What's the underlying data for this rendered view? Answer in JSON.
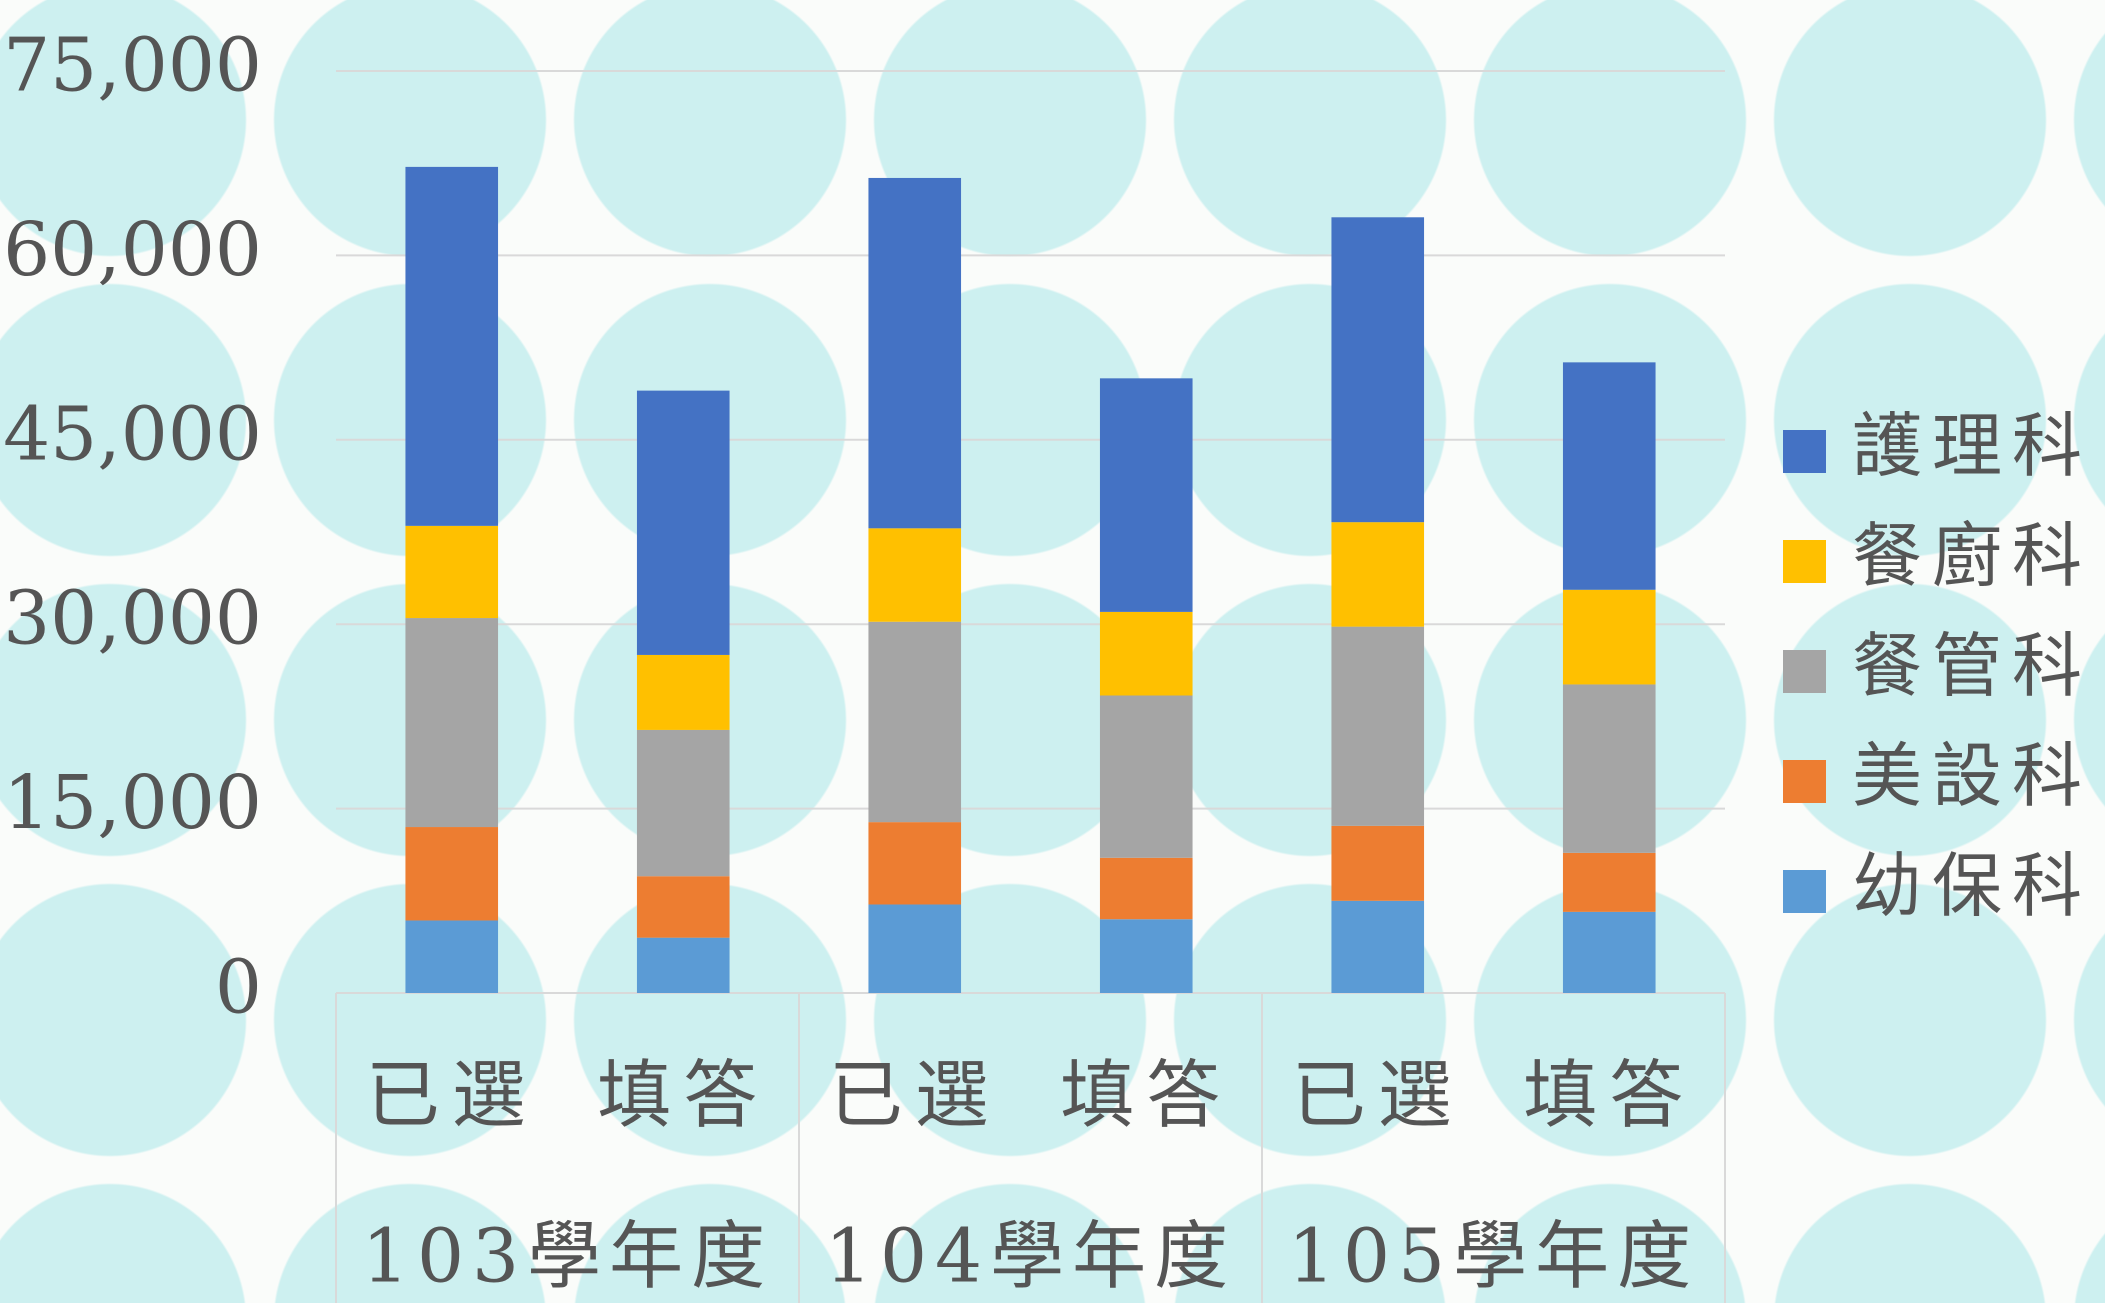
{
  "chart_data": {
    "type": "stacked_bar",
    "categories": [
      "已選",
      "填答",
      "已選",
      "填答",
      "已選",
      "填答"
    ],
    "groups": [
      "103學年度",
      "104學年度",
      "105學年度"
    ],
    "series": [
      {
        "name": "幼保科",
        "color": "#5b9bd5",
        "values": [
          5900,
          4500,
          7200,
          6000,
          7500,
          6600
        ]
      },
      {
        "name": "美設科",
        "color": "#ed7d31",
        "values": [
          7600,
          5000,
          6700,
          5000,
          6100,
          4800
        ]
      },
      {
        "name": "餐管科",
        "color": "#a5a5a5",
        "values": [
          17000,
          11900,
          16300,
          13200,
          16200,
          13700
        ]
      },
      {
        "name": "餐廚科",
        "color": "#ffc000",
        "values": [
          7500,
          6100,
          7600,
          6800,
          8500,
          7700
        ]
      },
      {
        "name": "護理科",
        "color": "#4472c4",
        "values": [
          29200,
          21500,
          28500,
          19000,
          24800,
          18500
        ]
      }
    ],
    "ylim": [
      0,
      75000
    ],
    "yticks": [
      0,
      {
        "value": 15000,
        "label": "15,000"
      },
      {
        "value": 30000,
        "label": "30,000"
      },
      {
        "value": 45000,
        "label": "45,000"
      },
      {
        "value": 60000,
        "label": "60,000"
      },
      {
        "value": 75000,
        "label": "75,000"
      }
    ],
    "grid": true,
    "legend": "right"
  }
}
